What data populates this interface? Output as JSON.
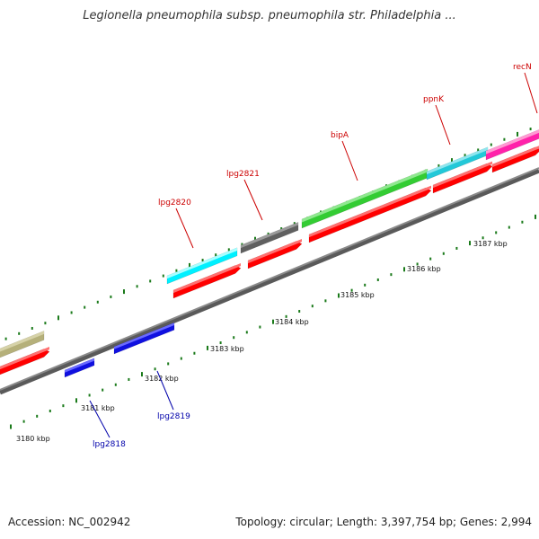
{
  "header": {
    "title": "Legionella pneumophila subsp. pneumophila str. Philadelphia ..."
  },
  "footer": {
    "accession": "Accession: NC_002942",
    "stats": "Topology: circular; Length: 3,397,754 bp; Genes: 2,994"
  },
  "colors": {
    "backbone": "#8a8a8a",
    "tick": "#1a7a1a",
    "cds": "#ff0000",
    "label_red": "#cc0000",
    "label_blue": "#0000aa"
  },
  "scale": {
    "ticks": [
      {
        "label": "3180 kbp"
      },
      {
        "label": "3181 kbp"
      },
      {
        "label": "3182 kbp"
      },
      {
        "label": "3183 kbp"
      },
      {
        "label": "3184 kbp"
      },
      {
        "label": "3185 kbp"
      },
      {
        "label": "3186 kbp"
      },
      {
        "label": "3187 kbp"
      }
    ]
  },
  "genes": [
    {
      "label": "",
      "color": "#b5b07a",
      "strand": "+"
    },
    {
      "label": "lpg2818",
      "color": "#1010e0",
      "strand": "-"
    },
    {
      "label": "lpg2819",
      "color": "#1010e0",
      "strand": "-"
    },
    {
      "label": "lpg2820",
      "color": "#00f0ff",
      "strand": "+"
    },
    {
      "label": "lpg2821",
      "color": "#606060",
      "strand": "+"
    },
    {
      "label": "bipA",
      "color": "#33cc33",
      "strand": "+"
    },
    {
      "label": "ppnK",
      "color": "#22c8d8",
      "strand": "+"
    },
    {
      "label": "recN",
      "color": "#ff22aa",
      "strand": "+"
    }
  ]
}
